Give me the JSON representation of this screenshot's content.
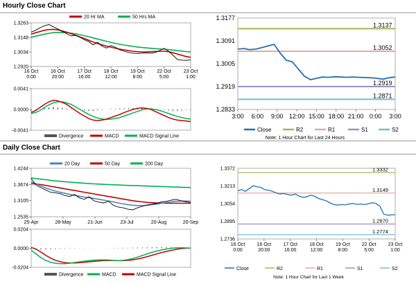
{
  "sections": {
    "hourly_title": "Hourly Close Chart",
    "daily_title": "Daily Close Chart"
  },
  "colors": {
    "ma_short": "#c00000",
    "ma_long": "#00b050",
    "r2": "#9bbb59",
    "r1": "#e6a8a0",
    "s1": "#9a8fc8",
    "s2": "#74bcd4",
    "close": "#1f6fb2",
    "macd_hist": "#555555"
  },
  "chart_data": [
    {
      "id": "hourly_price",
      "type": "line",
      "legend": [
        "20 Hr MA",
        "50 Hrs MA"
      ],
      "y_ticks": [
        "1.3263",
        "1.3148",
        "1.3034",
        "1.2920"
      ],
      "ylim": [
        1.292,
        1.3263
      ],
      "x_ticks": [
        "16 Oct\n0:00",
        "16 Oct\n20:00",
        "17 Oct\n16:00",
        "18 Oct\n12:00",
        "19 Oct\n8:00",
        "22 Oct\n5:00",
        "23 Oct\n1:00"
      ],
      "series": [
        {
          "name": "price",
          "values": [
            1.319,
            1.3205,
            1.3225,
            1.324,
            1.325,
            1.3232,
            1.3215,
            1.3195,
            1.3178,
            1.316,
            1.3165,
            1.315,
            1.313,
            1.3115,
            1.309,
            1.311,
            1.308,
            1.3065,
            1.3085,
            1.3072,
            1.305,
            1.304,
            1.303,
            1.3025,
            1.3022,
            1.3024,
            1.3028,
            1.3024,
            1.303,
            1.3045,
            1.3062,
            1.304,
            1.301,
            1.2975,
            1.297,
            1.2968,
            1.2972
          ]
        },
        {
          "name": "20 Hr MA",
          "values": [
            1.3175,
            1.3185,
            1.3195,
            1.3205,
            1.321,
            1.3212,
            1.3208,
            1.32,
            1.319,
            1.3178,
            1.3165,
            1.3152,
            1.314,
            1.3126,
            1.3112,
            1.31,
            1.309,
            1.308,
            1.3072,
            1.3064,
            1.3056,
            1.305,
            1.3044,
            1.304,
            1.3036,
            1.3034,
            1.3034,
            1.3036,
            1.3038,
            1.304,
            1.304,
            1.3036,
            1.3028,
            1.3018,
            1.3008,
            1.2998,
            1.2992
          ]
        },
        {
          "name": "50 Hrs MA",
          "values": [
            1.315,
            1.3158,
            1.3166,
            1.3174,
            1.318,
            1.3186,
            1.3188,
            1.3188,
            1.3186,
            1.3182,
            1.3177,
            1.317,
            1.3162,
            1.3154,
            1.3145,
            1.3136,
            1.3127,
            1.3118,
            1.311,
            1.3102,
            1.3095,
            1.3089,
            1.3083,
            1.3078,
            1.3073,
            1.3069,
            1.3066,
            1.3063,
            1.306,
            1.3058,
            1.3056,
            1.3053,
            1.3049,
            1.3045,
            1.3041,
            1.3037,
            1.3034
          ]
        }
      ]
    },
    {
      "id": "hourly_macd",
      "type": "line",
      "y_ticks": [
        "0.0041",
        "0.0000",
        "-0.0041"
      ],
      "ylim": [
        -0.0041,
        0.0041
      ],
      "legend": [
        "Divergence",
        "MACD",
        "MACD Signal Line"
      ],
      "series": [
        {
          "name": "Divergence",
          "values": [
            -0.0004,
            -0.0002,
            0.0,
            0.0002,
            0.0004,
            0.0005,
            0.0004,
            0.0003,
            0.0002,
            0.0001,
            0.0,
            -0.0001,
            -0.0002,
            -0.0003,
            -0.0003,
            -0.0002,
            -0.0001,
            0.0,
            0.0001,
            0.0001,
            0.0002,
            0.0002,
            0.0002,
            0.0003,
            0.0003,
            0.0003,
            0.0002,
            0.0002,
            0.0001,
            0.0,
            -0.0001,
            -0.0002,
            -0.0003,
            -0.0003,
            -0.0002,
            -0.0001,
            -0.0001
          ]
        },
        {
          "name": "MACD",
          "values": [
            -0.0006,
            -0.0002,
            0.0004,
            0.001,
            0.0015,
            0.0018,
            0.0017,
            0.0014,
            0.001,
            0.0004,
            -0.0002,
            -0.0008,
            -0.0013,
            -0.0018,
            -0.0021,
            -0.0022,
            -0.0021,
            -0.0019,
            -0.0016,
            -0.0013,
            -0.001,
            -0.0006,
            -0.0003,
            0.0,
            0.0002,
            0.0003,
            0.0002,
            0.0,
            -0.0004,
            -0.0008,
            -0.0012,
            -0.0016,
            -0.0019,
            -0.0021,
            -0.0022,
            -0.0023,
            -0.0024
          ]
        },
        {
          "name": "MACD Signal Line",
          "values": [
            -0.0008,
            -0.0006,
            -0.0002,
            0.0004,
            0.0009,
            0.0013,
            0.0015,
            0.0015,
            0.0013,
            0.001,
            0.0005,
            0.0,
            -0.0005,
            -0.001,
            -0.0014,
            -0.0017,
            -0.0019,
            -0.002,
            -0.0019,
            -0.0018,
            -0.0016,
            -0.0013,
            -0.001,
            -0.0007,
            -0.0004,
            -0.0001,
            0.0001,
            0.0001,
            0.0,
            -0.0002,
            -0.0005,
            -0.0008,
            -0.0011,
            -0.0014,
            -0.0016,
            -0.0018,
            -0.0019
          ]
        }
      ]
    },
    {
      "id": "hourly_pivot",
      "type": "line",
      "y_ticks": [
        "1.3177",
        "1.3091",
        "1.3005",
        "1.2919",
        "1.2833"
      ],
      "ylim": [
        1.2833,
        1.3177
      ],
      "x_ticks": [
        "3:00",
        "6:00",
        "9:00",
        "12:00",
        "15:00",
        "18:00",
        "21:00",
        "0:00",
        "3:00"
      ],
      "levels": [
        {
          "name": "R2",
          "value": 1.3137,
          "label": "1.3137"
        },
        {
          "name": "R1",
          "value": 1.3052,
          "label": "1.3052"
        },
        {
          "name": "S1",
          "value": 1.2919,
          "label": "1.2919"
        },
        {
          "name": "S2",
          "value": 1.2871,
          "label": "1.2871"
        }
      ],
      "series": [
        {
          "name": "Close",
          "values": [
            1.306,
            1.3062,
            1.3058,
            1.306,
            1.3066,
            1.3072,
            1.3078,
            1.3045,
            1.3018,
            1.3012,
            1.2985,
            1.2958,
            1.2945,
            1.295,
            1.2955,
            1.2954,
            1.2956,
            1.2955,
            1.2954,
            1.2955,
            1.2954,
            1.2953,
            1.2952,
            1.295,
            1.2947,
            1.2952,
            1.2955
          ]
        }
      ],
      "legend": [
        "Close",
        "R2",
        "R1",
        "S1",
        "S2"
      ],
      "note": "Note: 1 Hour Chart for Last 24 Hours"
    },
    {
      "id": "daily_price",
      "type": "line",
      "legend": [
        "20 Day",
        "50 Day",
        "200 Day"
      ],
      "y_ticks": [
        "1.4244",
        "1.3674",
        "1.3105",
        "1.2535"
      ],
      "ylim": [
        1.2535,
        1.4244
      ],
      "x_ticks": [
        "25-Apr",
        "28-May",
        "21-Jun",
        "23-Jul",
        "20-Aug",
        "20-Sep"
      ],
      "series": [
        {
          "name": "price",
          "values": [
            1.388,
            1.365,
            1.356,
            1.348,
            1.34,
            1.338,
            1.335,
            1.328,
            1.325,
            1.332,
            1.32,
            1.315,
            1.324,
            1.31,
            1.305,
            1.302,
            1.308,
            1.294,
            1.288,
            1.285,
            1.28,
            1.278,
            1.285,
            1.29,
            1.295,
            1.298,
            1.301,
            1.306,
            1.308,
            1.312,
            1.315,
            1.31,
            1.306,
            1.304
          ]
        },
        {
          "name": "20 Day",
          "values": [
            1.376,
            1.37,
            1.362,
            1.355,
            1.349,
            1.344,
            1.34,
            1.336,
            1.332,
            1.329,
            1.326,
            1.323,
            1.321,
            1.318,
            1.315,
            1.312,
            1.309,
            1.306,
            1.302,
            1.299,
            1.296,
            1.294,
            1.293,
            1.293,
            1.294,
            1.296,
            1.298,
            1.301,
            1.304,
            1.306,
            1.308,
            1.309,
            1.309,
            1.3085
          ]
        },
        {
          "name": "50 Day",
          "values": [
            1.37,
            1.369,
            1.367,
            1.364,
            1.361,
            1.358,
            1.355,
            1.352,
            1.349,
            1.346,
            1.343,
            1.34,
            1.337,
            1.334,
            1.331,
            1.328,
            1.325,
            1.322,
            1.319,
            1.316,
            1.313,
            1.31,
            1.308,
            1.306,
            1.304,
            1.303,
            1.302,
            1.3015,
            1.301,
            1.301,
            1.301,
            1.301,
            1.301,
            1.301
          ]
        },
        {
          "name": "200 Day",
          "values": [
            1.39,
            1.388,
            1.386,
            1.384,
            1.382,
            1.38,
            1.3785,
            1.377,
            1.3755,
            1.374,
            1.3728,
            1.3716,
            1.3705,
            1.3695,
            1.3686,
            1.3678,
            1.367,
            1.3662,
            1.3655,
            1.3648,
            1.3642,
            1.3636,
            1.363,
            1.3624,
            1.3618,
            1.3612,
            1.3606,
            1.36,
            1.3594,
            1.3588,
            1.3582,
            1.3576,
            1.357,
            1.3565
          ]
        }
      ]
    },
    {
      "id": "daily_macd",
      "type": "line",
      "y_ticks": [
        "0.0204",
        "0.0000",
        "-0.0204"
      ],
      "ylim": [
        -0.0204,
        0.0204
      ],
      "legend": [
        "Divergence",
        "MACD",
        "MACD Signal Line"
      ],
      "series": [
        {
          "name": "Divergence",
          "values": [
            -0.001,
            -0.0012,
            -0.0014,
            -0.0012,
            -0.001,
            -0.0008,
            -0.0006,
            -0.0005,
            -0.0004,
            -0.0003,
            -0.0002,
            -0.0002,
            -0.0001,
            -0.0001,
            0.0,
            0.0001,
            0.0002,
            0.0003,
            0.0004,
            0.0005,
            0.0006,
            0.0007,
            0.0008,
            0.0009,
            0.001,
            0.0011,
            0.0012,
            0.0013,
            0.0013,
            0.0012,
            0.0011,
            0.0009,
            0.0008,
            0.0006
          ]
        },
        {
          "name": "MACD",
          "values": [
            -0.002,
            -0.006,
            -0.01,
            -0.013,
            -0.015,
            -0.016,
            -0.0165,
            -0.0165,
            -0.016,
            -0.0152,
            -0.0145,
            -0.0138,
            -0.0132,
            -0.0128,
            -0.0125,
            -0.0124,
            -0.0126,
            -0.013,
            -0.0132,
            -0.013,
            -0.0122,
            -0.011,
            -0.0095,
            -0.0078,
            -0.006,
            -0.0044,
            -0.003,
            -0.0018,
            -0.0008,
            0.0,
            0.0004,
            0.0006,
            0.0004,
            0.0002
          ]
        },
        {
          "name": "MACD Signal Line",
          "values": [
            0.001,
            -0.001,
            -0.004,
            -0.0075,
            -0.0105,
            -0.0128,
            -0.0144,
            -0.0154,
            -0.0158,
            -0.0158,
            -0.0155,
            -0.015,
            -0.0145,
            -0.014,
            -0.0136,
            -0.0133,
            -0.0132,
            -0.0132,
            -0.0133,
            -0.0133,
            -0.013,
            -0.0124,
            -0.0115,
            -0.0104,
            -0.009,
            -0.0075,
            -0.006,
            -0.0046,
            -0.0034,
            -0.0022,
            -0.0012,
            -0.0004,
            0.0,
            0.0002
          ]
        }
      ]
    },
    {
      "id": "daily_pivot",
      "type": "line",
      "y_ticks": [
        "1.3372",
        "1.3213",
        "1.3054",
        "1.2895",
        "1.2736"
      ],
      "ylim": [
        1.2736,
        1.3372
      ],
      "x_ticks": [
        "16 Oct\n0:00",
        "16 Oct\n20:00",
        "17 Oct\n16:00",
        "18 Oct\n12:00",
        "19 Oct\n8:00",
        "22 Oct\n5:00",
        "23 Oct\n1:00"
      ],
      "levels": [
        {
          "name": "R2",
          "value": 1.3332,
          "label": "1.3332"
        },
        {
          "name": "R1",
          "value": 1.3149,
          "label": "1.3149"
        },
        {
          "name": "S1",
          "value": 1.287,
          "label": "1.2870"
        },
        {
          "name": "S2",
          "value": 1.2774,
          "label": "1.2774"
        }
      ],
      "series": [
        {
          "name": "Close",
          "values": [
            1.317,
            1.318,
            1.3165,
            1.319,
            1.3215,
            1.3205,
            1.32,
            1.318,
            1.3175,
            1.3165,
            1.315,
            1.314,
            1.3145,
            1.3135,
            1.313,
            1.314,
            1.312,
            1.311,
            1.3115,
            1.313,
            1.312,
            1.31,
            1.309,
            1.308,
            1.306,
            1.3045,
            1.304,
            1.3045,
            1.3042,
            1.305,
            1.3055,
            1.3048,
            1.305,
            1.3045,
            1.3052,
            1.3062,
            1.3055,
            1.303,
            1.296,
            1.295,
            1.2952,
            1.2955
          ]
        }
      ],
      "legend": [
        "Close",
        "R2",
        "R1",
        "S1",
        "S2"
      ],
      "note": "Note: 1 Hour Chart for Last 1 Week"
    }
  ]
}
